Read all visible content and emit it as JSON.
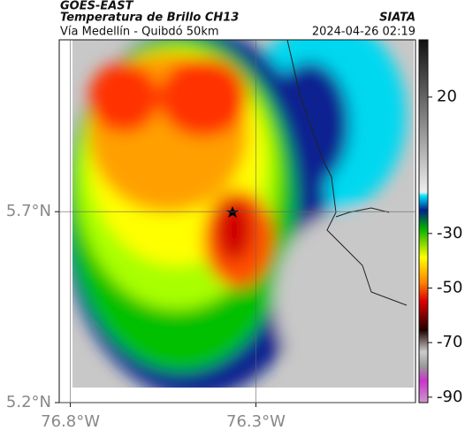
{
  "header": {
    "title": "GOES-EAST",
    "subtitle": "Temperatura de Brillo CH13",
    "route": "Vía Medellín - Quibdó 50km",
    "organization": "SIATA",
    "datetime": "2024-04-26 02:19"
  },
  "map": {
    "xlim": [
      -76.83,
      -75.87
    ],
    "ylim": [
      5.2,
      6.15
    ],
    "xticks": [
      {
        "value": -76.8,
        "label": "76.8°W"
      },
      {
        "value": -76.3,
        "label": "76.3°W"
      }
    ],
    "yticks": [
      {
        "value": 5.7,
        "label": "5.7°N"
      },
      {
        "value": 5.2,
        "label": "5.2°N"
      }
    ],
    "colorbar": {
      "lim": [
        -92,
        41
      ],
      "ticks": [
        20,
        -30,
        -50,
        -70,
        -90
      ]
    }
  }
}
